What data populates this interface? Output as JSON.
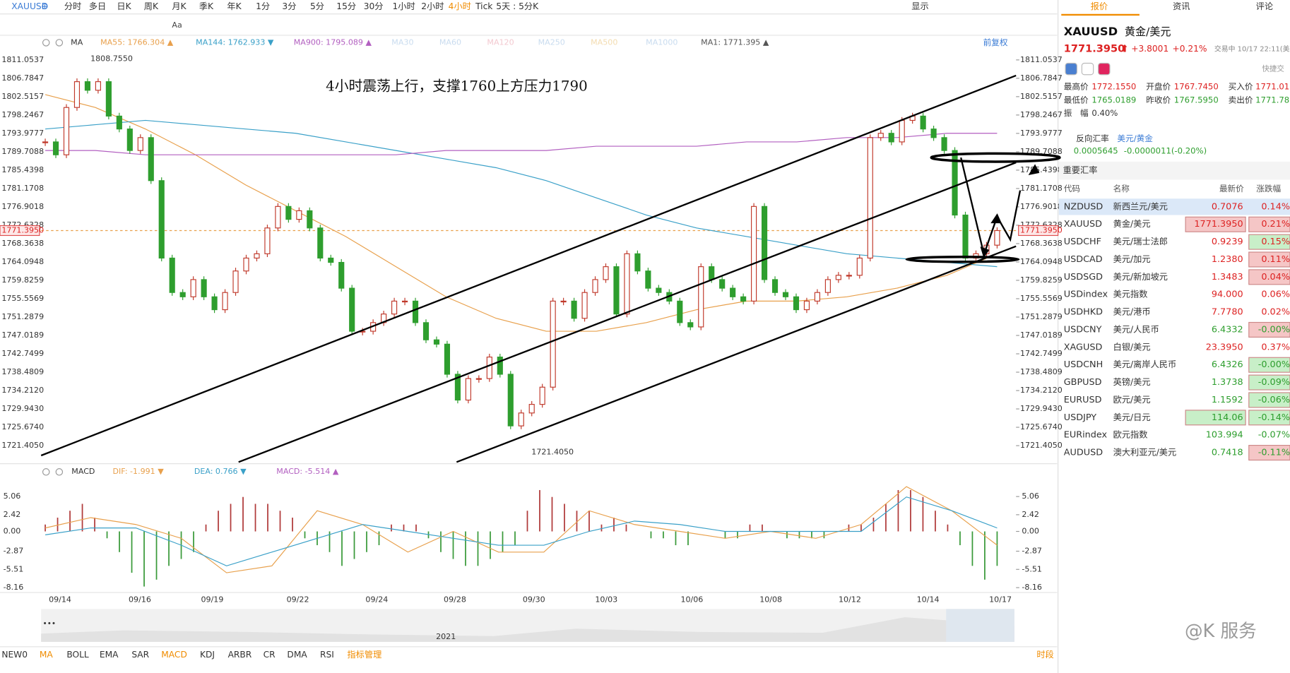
{
  "toolbar": {
    "symbol": "XAUUSD",
    "intervals": [
      "分时",
      "多日",
      "日K",
      "周K",
      "月K",
      "季K",
      "年K",
      "1分",
      "3分",
      "5分",
      "15分",
      "30分",
      "1小时",
      "2小时",
      "4小时",
      "Tick"
    ],
    "active_interval": 14,
    "view": "5天 : 5分K",
    "display": "显示",
    "text_tool": "Aa"
  },
  "chart": {
    "ma_title": "MA",
    "ma_legend": [
      {
        "text": "MA55: 1766.304 ▲",
        "color": "#e8a04c"
      },
      {
        "text": "MA144: 1762.933 ▼",
        "color": "#3aa0c8"
      },
      {
        "text": "MA900: 1795.089 ▲",
        "color": "#b25fc0"
      },
      {
        "text": "MA30",
        "color": "#c9dcef"
      },
      {
        "text": "MA60",
        "color": "#c9dcef"
      },
      {
        "text": "MA120",
        "color": "#f3c9d0"
      },
      {
        "text": "MA250",
        "color": "#c9dcef"
      },
      {
        "text": "MA500",
        "color": "#f3dcb0"
      },
      {
        "text": "MA1000",
        "color": "#c9dcef"
      },
      {
        "text": "MA1: 1771.395 ▲",
        "color": "#555555"
      }
    ],
    "adjust": "前复权",
    "annotation": "4小时震荡上行，支撑1760上方压力1790",
    "price_ticks": [
      "1811.0537",
      "1806.7847",
      "1802.5157",
      "1798.2467",
      "1793.9777",
      "1789.7088",
      "1785.4398",
      "1781.1708",
      "1776.9018",
      "1772.6328",
      "1768.3638",
      "1764.0948",
      "1759.8259",
      "1755.5569",
      "1751.2879",
      "1747.0189",
      "1742.7499",
      "1738.4809",
      "1734.2120",
      "1729.9430",
      "1725.6740",
      "1721.4050"
    ],
    "current_price": "1771.3950",
    "high_label": "1808.7550",
    "low_label": "1721.4050",
    "candles": [
      1792,
      1789,
      1800,
      1806,
      1804,
      1806,
      1798,
      1795,
      1790,
      1793,
      1783,
      1765,
      1757,
      1756,
      1760,
      1756,
      1753,
      1757,
      1762,
      1765,
      1766,
      1772,
      1777,
      1774,
      1776,
      1772,
      1765,
      1764,
      1758,
      1748,
      1748,
      1750,
      1752,
      1755,
      1755,
      1750,
      1746,
      1745,
      1738,
      1732,
      1737,
      1737,
      1742,
      1738,
      1726,
      1729,
      1731,
      1735,
      1755,
      1755,
      1751,
      1757,
      1760,
      1763,
      1752,
      1766,
      1762,
      1758,
      1757,
      1755,
      1750,
      1749,
      1763,
      1760,
      1758,
      1756,
      1755,
      1777,
      1760,
      1757,
      1756,
      1753,
      1755,
      1757,
      1760,
      1761,
      1761,
      1765,
      1793,
      1794,
      1792,
      1797,
      1798,
      1795,
      1793,
      1790,
      1775,
      1765,
      1766,
      1768,
      1771.395
    ],
    "ma_lines": [
      {
        "color": "#e8a04c",
        "values": [
          1803,
          1800,
          1795,
          1789,
          1782,
          1776,
          1770,
          1763,
          1756,
          1751,
          1748,
          1748,
          1750,
          1753,
          1755,
          1755,
          1756,
          1758,
          1761,
          1766
        ]
      },
      {
        "color": "#3aa0c8",
        "values": [
          1795,
          1796,
          1797,
          1796,
          1795,
          1794,
          1792,
          1790,
          1788,
          1786,
          1783,
          1779,
          1775,
          1772,
          1770,
          1768,
          1766,
          1765,
          1764,
          1763
        ]
      },
      {
        "color": "#b25fc0",
        "values": [
          1790,
          1790,
          1789,
          1789,
          1789,
          1789,
          1789,
          1789,
          1790,
          1790,
          1790,
          1791,
          1791,
          1791,
          1792,
          1792,
          1793,
          1793,
          1794,
          1794
        ]
      }
    ],
    "macd_title": "MACD",
    "macd_legend": [
      {
        "text": "DIF: -1.991 ▼",
        "color": "#e8a04c"
      },
      {
        "text": "DEA: 0.766 ▼",
        "color": "#3aa0c8"
      },
      {
        "text": "MACD: -5.514 ▲",
        "color": "#b25fc0"
      }
    ],
    "macd_ticks": [
      "5.06",
      "2.42",
      "0.00",
      "-2.87",
      "-5.51",
      "-8.16"
    ],
    "macd_hist": [
      1,
      2,
      3,
      4,
      2,
      -1,
      -3,
      -6,
      -8,
      -7,
      -5,
      -4,
      -3,
      1,
      3,
      4,
      5,
      4,
      4,
      3,
      2,
      -1,
      -2,
      -3,
      -5,
      -4,
      -3,
      -2,
      1,
      1,
      1,
      -1,
      -3,
      -4,
      -5,
      -5,
      -4,
      -3,
      -2,
      3,
      6,
      5,
      4,
      3,
      3,
      1,
      2,
      1,
      0,
      -1,
      -1,
      -2,
      -2,
      0,
      0,
      -1,
      -1,
      1,
      1,
      0,
      -1,
      -1,
      -1,
      -1,
      0,
      1,
      1,
      2,
      4,
      6,
      6,
      5,
      3,
      1,
      -2,
      -5,
      -7,
      -5
    ],
    "dif": [
      0.5,
      2,
      1,
      -1,
      -6,
      -5,
      3,
      1,
      -3,
      0,
      -3,
      -3,
      3,
      1,
      0,
      -1,
      0,
      -1,
      1,
      6.5,
      3,
      -2
    ],
    "dea": [
      -0.5,
      0.5,
      0.5,
      -2,
      -5,
      -3,
      -1,
      1,
      0,
      -1,
      -2,
      -2,
      0,
      1.5,
      1,
      0,
      0,
      0,
      0,
      5,
      3,
      0.5
    ],
    "dates": [
      "09/14",
      "09/16",
      "09/19",
      "09/22",
      "09/24",
      "09/28",
      "09/30",
      "10/03",
      "10/06",
      "10/08",
      "10/12",
      "10/14",
      "10/17"
    ],
    "year": "2021",
    "scroll_more": "•••"
  },
  "indicators": {
    "items": [
      "NEW0",
      "MA",
      "BOLL",
      "EMA",
      "SAR",
      "MACD",
      "KDJ",
      "ARBR",
      "CR",
      "DMA",
      "RSI",
      "指标管理"
    ],
    "active": [
      1,
      5,
      11
    ],
    "period": "时段"
  },
  "right_panel": {
    "tabs": [
      "报价",
      "资讯",
      "评论"
    ],
    "symbol": "XAUUSD",
    "name": "黄金/美元",
    "price": "1771.3950",
    "arrow": "⬆",
    "change": "+3.8001",
    "change_pct": "+0.21%",
    "status": "交易中 10/17 22:11(美",
    "quick": "快捷交",
    "stats": [
      [
        "最高价",
        "1772.1550",
        "开盘价",
        "1767.7450",
        "买入价",
        "1771.010"
      ],
      [
        "最低价",
        "1765.0189",
        "昨收价",
        "1767.5950",
        "卖出价",
        "1771.780"
      ]
    ],
    "amp_label": "振　幅",
    "amp": "0.40%",
    "reverse_label": "反向汇率",
    "reverse_pair": "美元/黄金",
    "reverse_price": "0.0005645",
    "reverse_change": "-0.0000011(-0.20%)",
    "rates_title": "重要汇率",
    "headers": [
      "代码",
      "名称",
      "最新价",
      "涨跌幅"
    ],
    "rows": [
      {
        "code": "NZDUSD",
        "name": "新西兰元/美元",
        "price": "0.7076",
        "change": "0.14%",
        "selected": true
      },
      {
        "code": "XAUUSD",
        "name": "黄金/美元",
        "price": "1771.3950",
        "change": "0.21%",
        "price_flash": "#f5c6c6",
        "change_flash": "#f5c6c6"
      },
      {
        "code": "USDCHF",
        "name": "美元/瑞士法郎",
        "price": "0.9239",
        "change": "0.15%",
        "change_flash": "#c8efc8"
      },
      {
        "code": "USDCAD",
        "name": "美元/加元",
        "price": "1.2380",
        "change": "0.11%",
        "change_flash": "#f5c6c6"
      },
      {
        "code": "USDSGD",
        "name": "美元/新加坡元",
        "price": "1.3483",
        "change": "0.04%",
        "change_flash": "#f5c6c6"
      },
      {
        "code": "USDindex",
        "name": "美元指数",
        "price": "94.000",
        "change": "0.06%"
      },
      {
        "code": "USDHKD",
        "name": "美元/港币",
        "price": "7.7780",
        "change": "0.02%"
      },
      {
        "code": "USDCNY",
        "name": "美元/人民币",
        "price": "6.4332",
        "change": "-0.00%",
        "change_flash": "#f5c6c6"
      },
      {
        "code": "XAGUSD",
        "name": "白银/美元",
        "price": "23.3950",
        "change": "0.37%"
      },
      {
        "code": "USDCNH",
        "name": "美元/离岸人民币",
        "price": "6.4326",
        "change": "-0.00%",
        "change_flash": "#c8efc8"
      },
      {
        "code": "GBPUSD",
        "name": "英镑/美元",
        "price": "1.3738",
        "change": "-0.09%",
        "change_flash": "#c8efc8"
      },
      {
        "code": "EURUSD",
        "name": "欧元/美元",
        "price": "1.1592",
        "change": "-0.06%",
        "change_flash": "#c8efc8"
      },
      {
        "code": "USDJPY",
        "name": "美元/日元",
        "price": "114.06",
        "change": "-0.14%",
        "price_flash": "#c8efc8",
        "change_flash": "#c8efc8"
      },
      {
        "code": "EURindex",
        "name": "欧元指数",
        "price": "103.994",
        "change": "-0.07%"
      },
      {
        "code": "AUDUSD",
        "name": "澳大利亚元/美元",
        "price": "0.7418",
        "change": "-0.11%",
        "change_flash": "#f5c6c6"
      }
    ]
  },
  "watermark": "@K 服务"
}
